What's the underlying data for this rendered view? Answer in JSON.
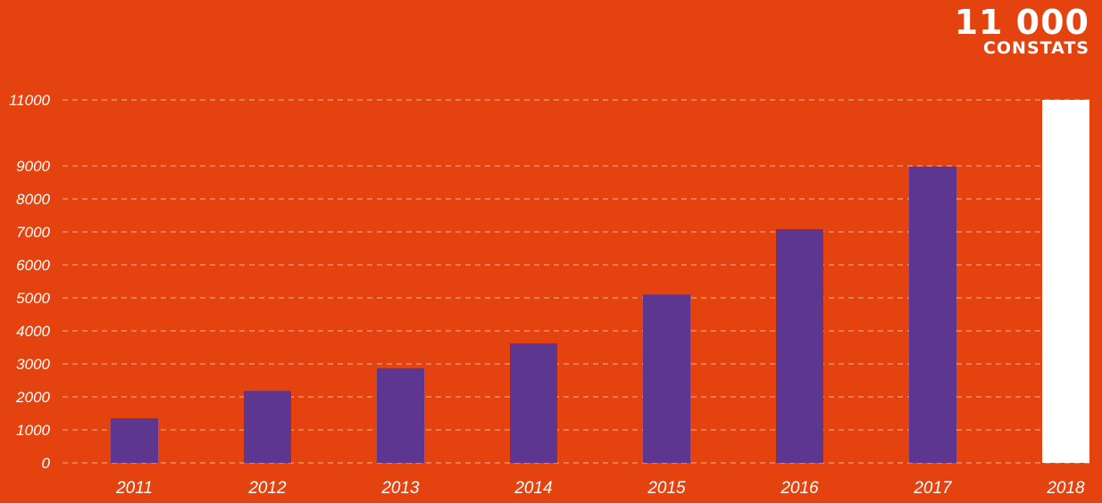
{
  "headline": {
    "value": "11 000",
    "label": "CONSTATS"
  },
  "colors": {
    "background": "#e44310",
    "bar": "#5c368f",
    "highlight_bar": "#ffffff",
    "grid": "#f3b29b",
    "text": "#ffffff"
  },
  "chart_data": {
    "type": "bar",
    "categories": [
      "2011",
      "2012",
      "2013",
      "2014",
      "2015",
      "2016",
      "2017",
      "2018"
    ],
    "values": [
      1350,
      2180,
      2870,
      3620,
      5100,
      7080,
      8980,
      11000
    ],
    "highlight_category": "2018",
    "ylim": [
      0,
      11000
    ],
    "yticks": [
      0,
      1000,
      2000,
      3000,
      4000,
      5000,
      6000,
      7000,
      8000,
      9000,
      11000
    ],
    "grid": true,
    "title": "",
    "xlabel": "",
    "ylabel": ""
  }
}
